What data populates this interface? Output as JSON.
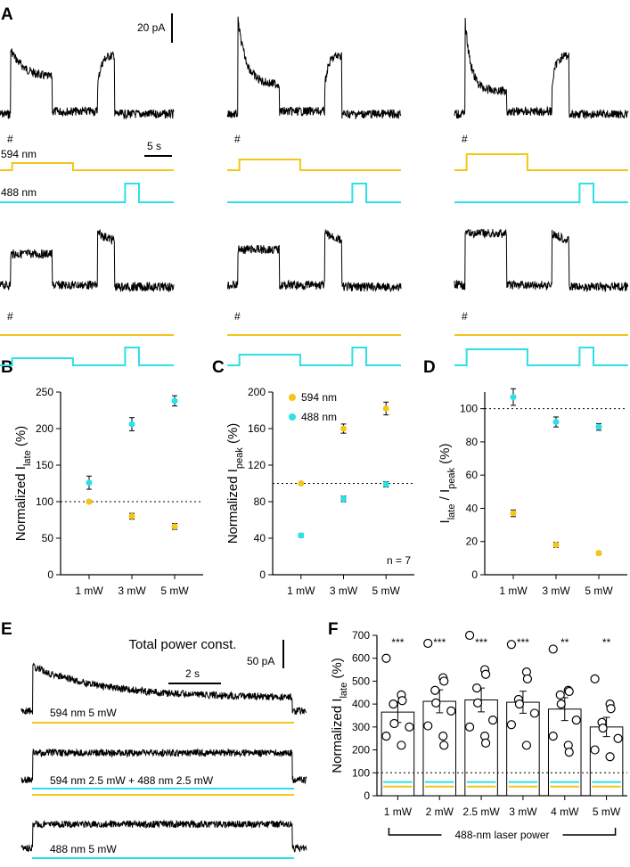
{
  "panels": {
    "A": "A",
    "B": "B",
    "C": "C",
    "D": "D",
    "E": "E",
    "F": "F"
  },
  "panelA": {
    "scalebar_current": "20 pA",
    "scalebar_time": "5 s",
    "label_594": "594 nm",
    "label_488": "488 nm",
    "hash": "#"
  },
  "colors": {
    "yellow": "#f5c518",
    "cyan": "#2de0e8"
  },
  "chart_data": [
    {
      "id": "B",
      "type": "scatter",
      "categories": [
        "1 mW",
        "3 mW",
        "5 mW"
      ],
      "ylabel": "Normalized I",
      "ylabel_sub": "late",
      "ylabel_suffix": " (%)",
      "ylim": [
        0,
        250
      ],
      "yticks": [
        0,
        50,
        100,
        150,
        200,
        250
      ],
      "reference_line": 100,
      "series": [
        {
          "color": "#f5c518",
          "values": [
            100,
            80,
            66
          ],
          "errors": [
            2,
            4,
            4
          ]
        },
        {
          "color": "#2de0e8",
          "values": [
            126,
            206,
            238
          ],
          "errors": [
            9,
            9,
            7
          ]
        }
      ]
    },
    {
      "id": "C",
      "type": "scatter",
      "categories": [
        "1 mW",
        "3 mW",
        "5 mW"
      ],
      "ylabel": "Normalized I",
      "ylabel_sub": "peak",
      "ylabel_suffix": " (%)",
      "ylim": [
        0,
        200
      ],
      "yticks": [
        0,
        40,
        80,
        120,
        160,
        200
      ],
      "reference_line": 100,
      "annotation": "n = 7",
      "series": [
        {
          "name": "594 nm",
          "color": "#f5c518",
          "values": [
            100,
            160,
            182
          ],
          "errors": [
            1,
            5,
            7
          ]
        },
        {
          "name": "488 nm",
          "color": "#2de0e8",
          "values": [
            43,
            83,
            99
          ],
          "errors": [
            2,
            3,
            3
          ]
        }
      ]
    },
    {
      "id": "D",
      "type": "scatter",
      "categories": [
        "1 mW",
        "3 mW",
        "5 mW"
      ],
      "ylabel": "I",
      "ylabel_sub": "late",
      "ylabel_mid": " / I",
      "ylabel_sub2": "peak",
      "ylabel_suffix": " (%)",
      "ylim": [
        0,
        110
      ],
      "yticks": [
        0,
        20,
        40,
        60,
        80,
        100
      ],
      "reference_line": 100,
      "series": [
        {
          "color": "#f5c518",
          "values": [
            37,
            18,
            13
          ],
          "errors": [
            2,
            1.5,
            1
          ]
        },
        {
          "color": "#2de0e8",
          "values": [
            107,
            92,
            89
          ],
          "errors": [
            5,
            3,
            2
          ]
        }
      ]
    },
    {
      "id": "F",
      "type": "bar",
      "categories": [
        "1 mW",
        "2 mW",
        "2.5 mW",
        "3 mW",
        "4 mW",
        "5 mW"
      ],
      "values": [
        365,
        412,
        418,
        408,
        378,
        300
      ],
      "errors": [
        45,
        50,
        52,
        48,
        50,
        42
      ],
      "significance": [
        "***",
        "***",
        "***",
        "***",
        "**",
        "**"
      ],
      "points": [
        [
          600,
          440,
          415,
          400,
          315,
          300,
          260,
          220
        ],
        [
          665,
          515,
          500,
          460,
          405,
          370,
          305,
          260,
          220
        ],
        [
          700,
          550,
          530,
          470,
          405,
          330,
          300,
          260,
          230
        ],
        [
          660,
          540,
          510,
          420,
          400,
          360,
          310,
          220
        ],
        [
          640,
          460,
          455,
          440,
          400,
          330,
          260,
          220,
          190
        ],
        [
          510,
          400,
          380,
          320,
          295,
          250,
          200,
          170
        ]
      ],
      "ylabel": "Normalized I",
      "ylabel_sub": "late",
      "ylabel_suffix": " (%)",
      "ylim": [
        0,
        700
      ],
      "yticks": [
        0,
        100,
        200,
        300,
        400,
        500,
        600,
        700
      ],
      "reference_line": 100,
      "yellow_level": 40,
      "cyan_level": 60,
      "group_label": "488-nm laser power"
    }
  ],
  "panelE": {
    "title": "Total power const.",
    "scalebar_current": "50 pA",
    "scalebar_time": "2 s",
    "trace1_label": "594 nm 5 mW",
    "trace2_label": "594 nm 2.5 mW + 488 nm 2.5 mW",
    "trace3_label": "488 nm 5 mW"
  }
}
